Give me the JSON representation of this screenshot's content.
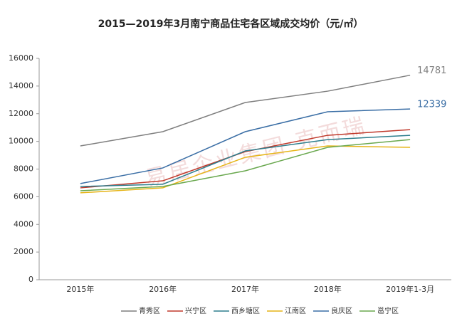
{
  "chart_data": {
    "type": "line",
    "title": "2015—2019年3月南宁商品住宅各区域成交均价（元/㎡）",
    "watermark": "易居企业集团·克而瑞",
    "categories": [
      "2015年",
      "2016年",
      "2017年",
      "2018年",
      "2019年1-3月"
    ],
    "ylim": [
      0,
      16000
    ],
    "yticks": [
      0,
      2000,
      4000,
      6000,
      8000,
      10000,
      12000,
      14000,
      16000
    ],
    "legend": "bottom",
    "series": [
      {
        "name": "青秀区",
        "color": "#7f7f7f",
        "values": [
          9670,
          10700,
          12810,
          13630,
          14781
        ],
        "value_labels": [
          null,
          null,
          null,
          null,
          "14781"
        ]
      },
      {
        "name": "兴宁区",
        "color": "#c0392b",
        "values": [
          6640,
          7150,
          9260,
          10440,
          10850
        ]
      },
      {
        "name": "西乡塘区",
        "color": "#2e7f8e",
        "values": [
          6740,
          6900,
          9310,
          10130,
          10440
        ]
      },
      {
        "name": "江南区",
        "color": "#e6b417",
        "values": [
          6280,
          6640,
          8850,
          9670,
          9570
        ]
      },
      {
        "name": "良庆区",
        "color": "#3a6ea5",
        "values": [
          6950,
          8080,
          10700,
          12140,
          12339
        ],
        "value_labels": [
          null,
          null,
          null,
          null,
          "12339"
        ]
      },
      {
        "name": "邕宁区",
        "color": "#6aa84f",
        "values": [
          6430,
          6740,
          7870,
          9570,
          10130
        ]
      }
    ]
  }
}
